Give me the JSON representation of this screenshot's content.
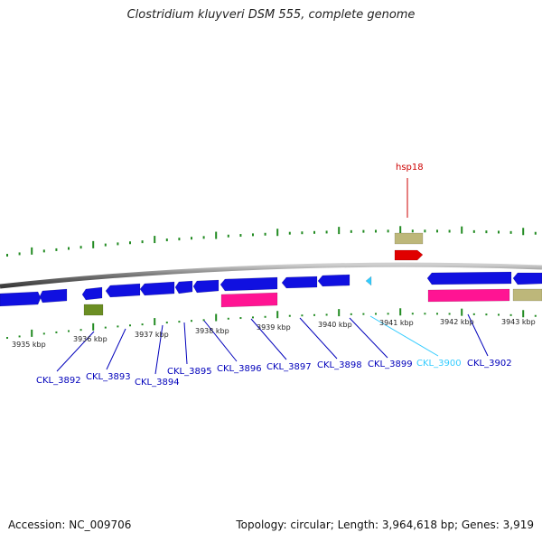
{
  "title": "Clostridium kluyveri DSM 555, complete genome",
  "footer": {
    "accession": "Accession: NC_009706",
    "summary": "Topology: circular; Length: 3,964,618 bp; Genes: 3,919"
  },
  "colors": {
    "cds": "#1010e0",
    "rna": "#ff1493",
    "tan": "#bdb77a",
    "olive": "#6b8e23",
    "highlight": "#e00000",
    "tick": "#228b22",
    "label": "#0000bb",
    "label_selected": "#33ccff",
    "label_highlight": "#cc0000"
  },
  "scale_labels": [
    "3935 kbp",
    "3936 kbp",
    "3937 kbp",
    "3938 kbp",
    "3939 kbp",
    "3940 kbp",
    "3941 kbp",
    "3942 kbp",
    "3943 kbp"
  ],
  "gene_labels": [
    {
      "text": "CKL_3892",
      "style": "normal"
    },
    {
      "text": "CKL_3893",
      "style": "normal"
    },
    {
      "text": "CKL_3894",
      "style": "normal"
    },
    {
      "text": "CKL_3895",
      "style": "normal"
    },
    {
      "text": "CKL_3896",
      "style": "normal"
    },
    {
      "text": "CKL_3897",
      "style": "normal"
    },
    {
      "text": "CKL_3898",
      "style": "normal"
    },
    {
      "text": "CKL_3899",
      "style": "normal"
    },
    {
      "text": "CKL_3900",
      "style": "selected"
    },
    {
      "text": "CKL_3902",
      "style": "normal"
    },
    {
      "text": "hsp18",
      "style": "highlight"
    }
  ]
}
